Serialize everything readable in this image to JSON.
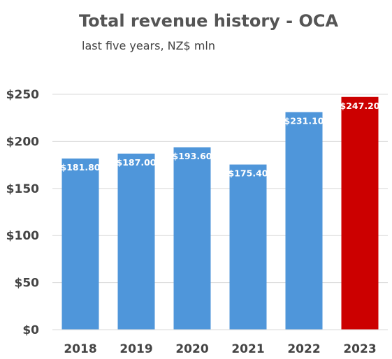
{
  "chart_data": {
    "type": "bar",
    "title": "Total revenue history - OCA",
    "subtitle": "last five years, NZ$ mln",
    "xlabel": "",
    "ylabel": "",
    "categories": [
      "2018",
      "2019",
      "2020",
      "2021",
      "2022",
      "2023"
    ],
    "values": [
      181.8,
      187.0,
      193.6,
      175.4,
      231.1,
      247.2
    ],
    "data_labels": [
      "$181.80",
      "$187.00",
      "$193.60",
      "$175.40",
      "$231.10",
      "$247.20"
    ],
    "bar_colors": [
      "#4f96da",
      "#4f96da",
      "#4f96da",
      "#4f96da",
      "#4f96da",
      "#cc0000"
    ],
    "ylim": [
      0,
      250
    ],
    "yticks": [
      0,
      50,
      100,
      150,
      200,
      250
    ],
    "ytick_labels": [
      "$0",
      "$50",
      "$100",
      "$150",
      "$200",
      "$250"
    ],
    "grid": true,
    "legend": "none"
  }
}
